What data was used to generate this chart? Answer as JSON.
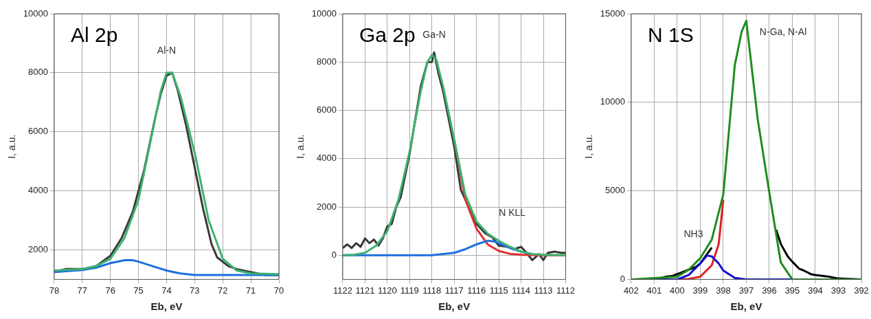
{
  "chart_data": [
    {
      "type": "line",
      "title": "Al 2p",
      "xlabel": "Eb, eV",
      "ylabel": "I, a.u.",
      "xlim": [
        78,
        70
      ],
      "ylim": [
        1000,
        10000
      ],
      "xticks": [
        78,
        77,
        76,
        75,
        74,
        73,
        72,
        71,
        70
      ],
      "yticks": [
        2000,
        4000,
        6000,
        8000,
        10000
      ],
      "grid": true,
      "annotations": [
        "Al-N"
      ],
      "series": [
        {
          "color": "#3a3a3a",
          "x": [
            78,
            77.6,
            77,
            76.5,
            76,
            75.6,
            75.2,
            74.8,
            74.4,
            74.2,
            74,
            73.8,
            73.6,
            73.3,
            73,
            72.7,
            72.4,
            72.2,
            71.8,
            71.5,
            71,
            70.5,
            70
          ],
          "values": [
            1250,
            1350,
            1350,
            1450,
            1800,
            2400,
            3300,
            4700,
            6500,
            7300,
            7900,
            8000,
            7400,
            6200,
            4800,
            3400,
            2200,
            1750,
            1450,
            1350,
            1250,
            1150,
            1150
          ]
        },
        {
          "color": "#1f6fe0",
          "x": [
            78,
            77,
            76.5,
            76,
            75.5,
            75.2,
            75,
            74.5,
            74,
            73.5,
            73,
            72,
            70
          ],
          "values": [
            1250,
            1320,
            1400,
            1550,
            1650,
            1650,
            1600,
            1450,
            1300,
            1200,
            1150,
            1150,
            1150
          ]
        },
        {
          "color": "#3cb371",
          "x": [
            78,
            77,
            76.5,
            76,
            75.5,
            75,
            74.5,
            74.2,
            74,
            73.8,
            73.5,
            73,
            72.5,
            72,
            71.5,
            71,
            70
          ],
          "values": [
            1300,
            1350,
            1450,
            1700,
            2400,
            3700,
            6000,
            7400,
            8000,
            8000,
            7200,
            5300,
            3000,
            1700,
            1300,
            1200,
            1180
          ]
        }
      ]
    },
    {
      "type": "line",
      "title": "Ga 2p",
      "xlabel": "Eb, eV",
      "ylabel": "I, a.u.",
      "xlim": [
        1122,
        1112
      ],
      "ylim": [
        -1000,
        10000
      ],
      "xticks": [
        1122,
        1121,
        1120,
        1119,
        1118,
        1117,
        1116,
        1115,
        1114,
        1113,
        1112
      ],
      "yticks": [
        0,
        2000,
        4000,
        6000,
        8000,
        10000
      ],
      "grid": true,
      "annotations": [
        "Ga-N",
        "N KLL"
      ],
      "series": [
        {
          "color": "#3a3a3a",
          "x": [
            1122,
            1121.8,
            1121.6,
            1121.4,
            1121.2,
            1121,
            1120.8,
            1120.6,
            1120.4,
            1120.2,
            1120,
            1119.8,
            1119.6,
            1119.4,
            1119,
            1118.5,
            1118.2,
            1118,
            1117.9,
            1117.7,
            1117.5,
            1117,
            1116.7,
            1116.4,
            1116,
            1115.6,
            1115.3,
            1115,
            1114.6,
            1114.3,
            1114,
            1113.8,
            1113.5,
            1113.2,
            1113,
            1112.8,
            1112.5,
            1112.2,
            1112
          ],
          "values": [
            300,
            450,
            300,
            500,
            350,
            700,
            500,
            650,
            400,
            700,
            1200,
            1300,
            2000,
            2400,
            4200,
            7000,
            8000,
            8000,
            8400,
            7500,
            6800,
            4500,
            2700,
            2100,
            1300,
            900,
            750,
            400,
            350,
            250,
            350,
            150,
            -200,
            50,
            -200,
            100,
            150,
            100,
            100
          ]
        },
        {
          "color": "#e03030",
          "x": [
            1117,
            1116.5,
            1116,
            1115.5,
            1115,
            1114.5,
            1114,
            1113,
            1112
          ],
          "values": [
            4800,
            2300,
            1100,
            450,
            180,
            60,
            20,
            0,
            0
          ]
        },
        {
          "color": "#1f6fe0",
          "x": [
            1122,
            1118,
            1117,
            1116.5,
            1116,
            1115.5,
            1115.2,
            1115,
            1114.5,
            1114,
            1113.5
          ],
          "values": [
            0,
            0,
            100,
            250,
            450,
            600,
            570,
            500,
            300,
            150,
            50
          ]
        },
        {
          "color": "#3cb371",
          "x": [
            1122,
            1121.5,
            1121,
            1120.5,
            1120,
            1119.5,
            1119,
            1118.5,
            1118.2,
            1118,
            1117.8,
            1117.5,
            1117,
            1116.5,
            1116,
            1115.5,
            1115,
            1114.5,
            1114,
            1113.5,
            1113,
            1112
          ],
          "values": [
            0,
            20,
            100,
            400,
            1000,
            2300,
            4300,
            6800,
            8000,
            8300,
            8100,
            7000,
            4800,
            2500,
            1400,
            900,
            600,
            350,
            150,
            50,
            20,
            0
          ]
        }
      ]
    },
    {
      "type": "line",
      "title": "N 1S",
      "xlabel": "Eb, eV",
      "ylabel": "I, a.u.",
      "xlim": [
        402,
        392
      ],
      "ylim": [
        0,
        15000
      ],
      "xticks": [
        402,
        401,
        400,
        399,
        398,
        397,
        396,
        395,
        394,
        393,
        392
      ],
      "yticks": [
        0,
        5000,
        10000,
        15000
      ],
      "grid": true,
      "annotations": [
        "N-Ga, N-Al",
        "NH3"
      ],
      "series": [
        {
          "color": "#000000",
          "x": [
            400.8,
            400.5,
            400.2,
            400,
            399.8,
            399.5,
            399.2,
            399,
            398.5
          ],
          "values": [
            50,
            150,
            200,
            300,
            400,
            550,
            700,
            900,
            1800
          ]
        },
        {
          "color": "#000000",
          "x": [
            395.7,
            395.5,
            395.2,
            395,
            394.7,
            394.5,
            394.2,
            394,
            393.7,
            393.4,
            393,
            392.5,
            392
          ],
          "values": [
            2800,
            2000,
            1300,
            1000,
            600,
            500,
            300,
            250,
            200,
            150,
            50,
            30,
            0
          ]
        },
        {
          "color": "#e02020",
          "x": [
            402,
            400,
            399.5,
            399,
            398.5,
            398.2,
            398
          ],
          "values": [
            0,
            0,
            30,
            150,
            800,
            2000,
            4500
          ]
        },
        {
          "color": "#1010d0",
          "x": [
            402,
            400,
            399.5,
            399,
            398.7,
            398.5,
            398.2,
            398,
            397.5,
            397,
            395,
            392
          ],
          "values": [
            0,
            0,
            250,
            900,
            1350,
            1300,
            900,
            500,
            80,
            0,
            0,
            0
          ]
        },
        {
          "color": "#1e8c1e",
          "x": [
            402,
            400,
            399.5,
            399,
            398.5,
            398,
            397.5,
            397.2,
            397,
            396.5,
            396,
            395.5,
            395,
            394,
            392
          ],
          "values": [
            0,
            150,
            550,
            1200,
            2250,
            4800,
            12100,
            14000,
            14600,
            9000,
            4900,
            950,
            0,
            0,
            0
          ]
        }
      ]
    }
  ]
}
